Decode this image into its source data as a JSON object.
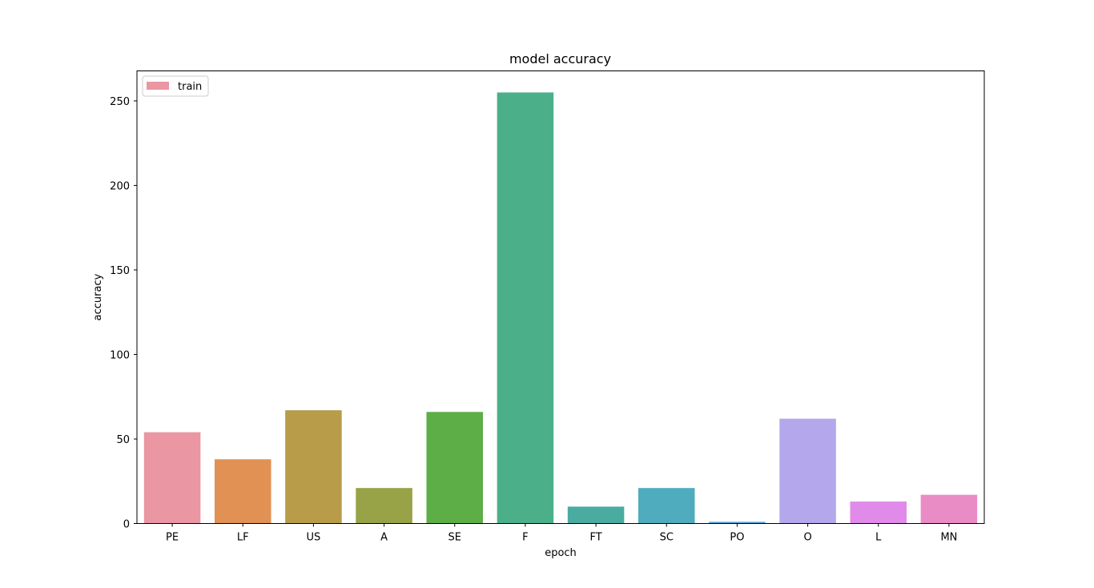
{
  "chart_data": {
    "type": "bar",
    "title": "model accuracy",
    "xlabel": "epoch",
    "ylabel": "accuracy",
    "categories": [
      "PE",
      "LF",
      "US",
      "A",
      "SE",
      "F",
      "FT",
      "SC",
      "PO",
      "O",
      "L",
      "MN"
    ],
    "series": [
      {
        "name": "train",
        "values": [
          54,
          38,
          67,
          21,
          66,
          255,
          10,
          21,
          1,
          62,
          13,
          17
        ]
      }
    ],
    "bar_colors": [
      "#ea96a3",
      "#e19153",
      "#b89c49",
      "#98a246",
      "#5eae48",
      "#4bb08a",
      "#4aaca0",
      "#4facbe",
      "#5ba3d9",
      "#b5a7eb",
      "#e08bea",
      "#e98cc6"
    ],
    "yticks": [
      0,
      50,
      100,
      150,
      200,
      250
    ],
    "ylim": [
      0,
      267.75
    ],
    "grid": false,
    "legend_position": "upper-left"
  }
}
